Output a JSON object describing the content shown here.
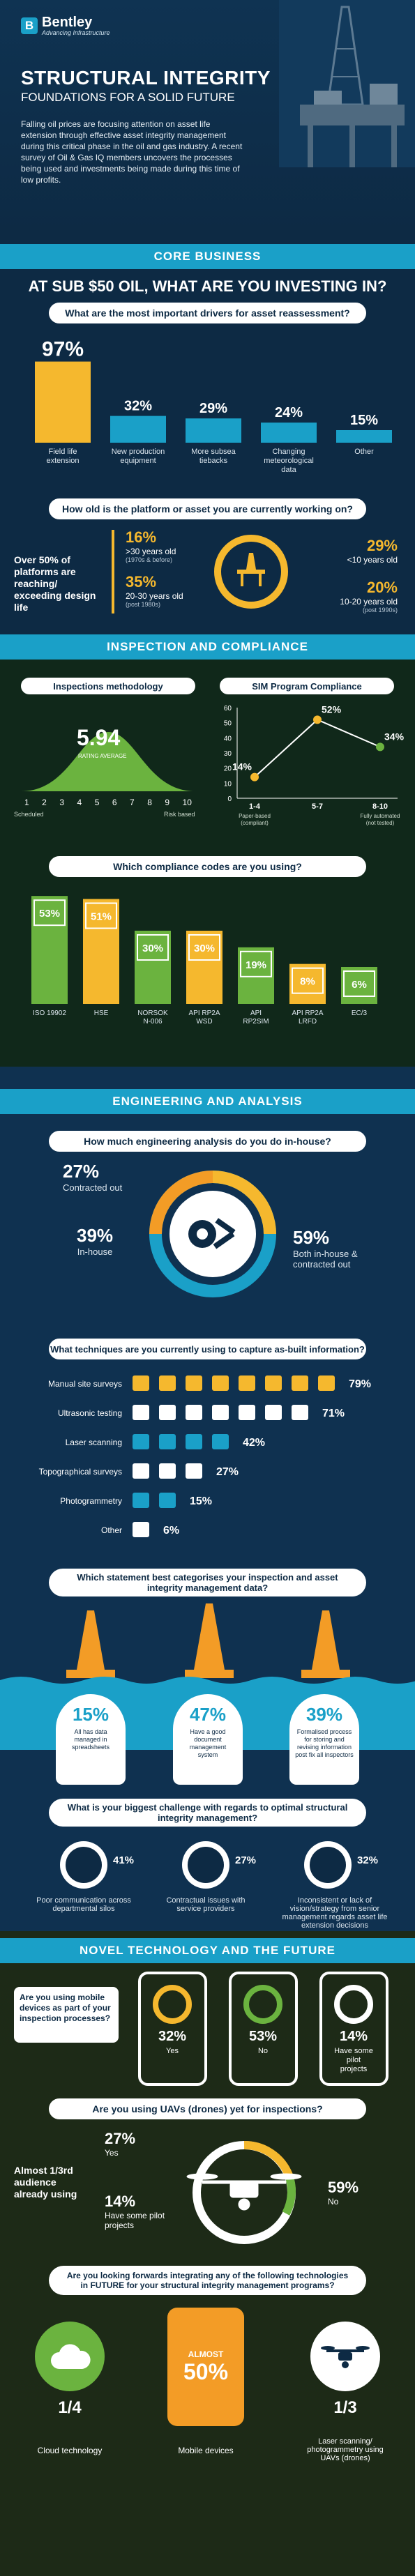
{
  "header": {
    "logo": "Bentley",
    "tagline": "Advancing Infrastructure",
    "title": "STRUCTURAL INTEGRITY",
    "subtitle": "FOUNDATIONS FOR A SOLID FUTURE",
    "intro": "Falling oil prices are focusing attention on asset life extension through effective asset integrity management during this critical phase in the oil and gas industry. A recent survey of Oil & Gas IQ members uncovers the processes being used and investments being made during this time of low profits."
  },
  "core": {
    "section": "CORE BUSINESS",
    "headline": "AT SUB $50 OIL, WHAT ARE YOU INVESTING IN?",
    "q1": "What are the most important drivers for asset reassessment?",
    "drivers": [
      {
        "pct": "97%",
        "value": 97,
        "label": "Field life extension"
      },
      {
        "pct": "32%",
        "value": 32,
        "label": "New production equipment"
      },
      {
        "pct": "29%",
        "value": 29,
        "label": "More subsea tiebacks"
      },
      {
        "pct": "24%",
        "value": 24,
        "label": "Changing meteorological data"
      },
      {
        "pct": "15%",
        "value": 15,
        "label": "Other"
      }
    ],
    "q2": "How old is the platform or asset you are currently working on?",
    "over50": "Over 50% of platforms are reaching/ exceeding design life",
    "ages": [
      {
        "pct": "16%",
        "label": ">30 years old",
        "note": "(1970s & before)"
      },
      {
        "pct": "35%",
        "label": "20-30 years old",
        "note": "(post 1980s)"
      },
      {
        "pct": "29%",
        "label": "<10 years old",
        "note": ""
      },
      {
        "pct": "20%",
        "label": "10-20 years old",
        "note": "(post 1990s)"
      }
    ]
  },
  "inspection": {
    "section": "INSPECTION AND COMPLIANCE",
    "method_title": "Inspections methodology",
    "rating": "5.94",
    "rating_label": "RATING AVERAGE",
    "scale": [
      "1",
      "2",
      "3",
      "4",
      "5",
      "6",
      "7",
      "8",
      "9",
      "10"
    ],
    "scale_left": "Scheduled",
    "scale_right": "Risk based",
    "sim_title": "SIM Program Compliance",
    "chart_data": {
      "type": "line",
      "categories": [
        "1-4",
        "5-7",
        "8-10"
      ],
      "values": [
        14,
        52,
        34
      ],
      "ylim": [
        0,
        60
      ],
      "yticks": [
        "60",
        "50",
        "40",
        "30",
        "20",
        "10",
        "0"
      ],
      "value_labels": [
        "14%",
        "52%",
        "34%"
      ],
      "cat_notes": [
        "Paper-based (compliant)",
        "",
        "Fully automated (not tested)"
      ]
    },
    "codes_q": "Which compliance codes are you using?",
    "codes": [
      {
        "pct": "53%",
        "value": 53,
        "label": "ISO 19902"
      },
      {
        "pct": "51%",
        "value": 51,
        "label": "HSE"
      },
      {
        "pct": "30%",
        "value": 30,
        "label": "NORSOK N-006"
      },
      {
        "pct": "30%",
        "value": 30,
        "label": "API RP2A WSD"
      },
      {
        "pct": "19%",
        "value": 19,
        "label": "API RP2SIM"
      },
      {
        "pct": "8%",
        "value": 8,
        "label": "API RP2A LRFD"
      },
      {
        "pct": "6%",
        "value": 6,
        "label": "EC/3"
      }
    ]
  },
  "engineering": {
    "section": "ENGINEERING AND ANALYSIS",
    "q1": "How much engineering analysis do you do in-house?",
    "contracted": {
      "pct": "27%",
      "label": "Contracted out"
    },
    "inhouse": {
      "pct": "39%",
      "label": "In-house"
    },
    "both": {
      "pct": "59%",
      "label": "Both in-house & contracted out"
    },
    "q2": "What techniques are you currently using to capture as-built information?",
    "techniques": [
      {
        "label": "Manual site surveys",
        "pct": "79%",
        "icons": 8
      },
      {
        "label": "Ultrasonic testing",
        "pct": "71%",
        "icons": 7
      },
      {
        "label": "Laser scanning",
        "pct": "42%",
        "icons": 4
      },
      {
        "label": "Topographical surveys",
        "pct": "27%",
        "icons": 3
      },
      {
        "label": "Photogrammetry",
        "pct": "15%",
        "icons": 2
      },
      {
        "label": "Other",
        "pct": "6%",
        "icons": 1
      }
    ],
    "q3": "Which statement best categorises your inspection and asset integrity management data?",
    "statements": [
      {
        "pct": "15%",
        "label": "All has data managed in spreadsheets"
      },
      {
        "pct": "47%",
        "label": "Have a good document management system"
      },
      {
        "pct": "39%",
        "label": "Formalised process for storing and revising information post fix all inspectors"
      }
    ],
    "q4": "What is your biggest challenge with regards to optimal structural integrity management?",
    "challenges": [
      {
        "pct": "41%",
        "label": "Poor communication across departmental silos"
      },
      {
        "pct": "27%",
        "label": "Contractual issues with service providers"
      },
      {
        "pct": "32%",
        "label": "Inconsistent or lack of vision/strategy from senior management regards asset life extension decisions"
      }
    ]
  },
  "novel": {
    "section": "NOVEL TECHNOLOGY AND THE FUTURE",
    "mobile_q": "Are you using mobile devices as part of your inspection processes?",
    "mobile": [
      {
        "pct": "32%",
        "label": "Yes"
      },
      {
        "pct": "53%",
        "label": "No"
      },
      {
        "pct": "14%",
        "label": "Have some pilot projects"
      }
    ],
    "uav_q": "Are you using UAVs (drones) yet for inspections?",
    "uav_summary": "Almost 1/3rd audience already using",
    "uav": [
      {
        "pct": "27%",
        "label": "Yes"
      },
      {
        "pct": "14%",
        "label": "Have some pilot projects"
      },
      {
        "pct": "59%",
        "label": "No"
      }
    ],
    "future_q": "Are you looking forwards integrating any of the following technologies in FUTURE for your structural integrity management programs?",
    "future": [
      {
        "value": "1/4",
        "label": "Cloud technology"
      },
      {
        "value": "50%",
        "prefix": "ALMOST",
        "label": "Mobile devices"
      },
      {
        "value": "1/3",
        "label": "Laser scanning/ photogrammetry using UAVs (drones)"
      }
    ]
  },
  "colors": {
    "navy": "#0d2a44",
    "teal": "#1aa0c8",
    "yellow": "#f5b82e",
    "green": "#6bb33f",
    "orange": "#f39c26"
  }
}
